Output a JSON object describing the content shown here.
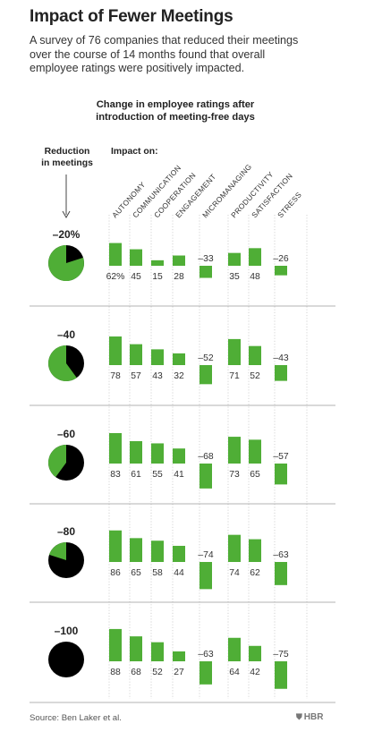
{
  "header": {
    "title": "Impact of Fewer Meetings",
    "subtitle_lines": [
      "A survey of 76 companies that reduced their meetings",
      "over the course of 14 months found that overall",
      "employee ratings were positively impacted."
    ]
  },
  "chart_data": {
    "type": "bar",
    "title_lines": [
      "Change in employee ratings after",
      "introduction of meeting-free days"
    ],
    "row_header_lines": [
      "Reduction",
      "in meetings"
    ],
    "arrow_icon": "down-arrow-icon",
    "categories_header": "Impact on:",
    "categories": [
      "AUTONOMY",
      "COMMUNICATION",
      "COOPERATION",
      "ENGAGEMENT",
      "MICROMANAGING",
      "PRODUCTIVITY",
      "SATISFACTION",
      "STRESS"
    ],
    "colors": {
      "positive": "#4fae36",
      "negative": "#4fae36",
      "pie_fill": "#4fae36",
      "pie_base": "#000000",
      "divider": "#9a9a9a"
    },
    "rows": [
      {
        "reduction_label": "–20%",
        "reduction_pct": 20,
        "values": [
          62,
          45,
          15,
          28,
          -33,
          35,
          48,
          -26
        ],
        "value_labels": [
          "62%",
          "45",
          "15",
          "28",
          "–33",
          "35",
          "48",
          "–26"
        ]
      },
      {
        "reduction_label": "–40",
        "reduction_pct": 40,
        "values": [
          78,
          57,
          43,
          32,
          -52,
          71,
          52,
          -43
        ],
        "value_labels": [
          "78",
          "57",
          "43",
          "32",
          "–52",
          "71",
          "52",
          "–43"
        ]
      },
      {
        "reduction_label": "–60",
        "reduction_pct": 60,
        "values": [
          83,
          61,
          55,
          41,
          -68,
          73,
          65,
          -57
        ],
        "value_labels": [
          "83",
          "61",
          "55",
          "41",
          "–68",
          "73",
          "65",
          "–57"
        ]
      },
      {
        "reduction_label": "–80",
        "reduction_pct": 80,
        "values": [
          86,
          65,
          58,
          44,
          -74,
          74,
          62,
          -63
        ],
        "value_labels": [
          "86",
          "65",
          "58",
          "44",
          "–74",
          "74",
          "62",
          "–63"
        ]
      },
      {
        "reduction_label": "–100",
        "reduction_pct": 100,
        "values": [
          88,
          68,
          52,
          27,
          -63,
          64,
          42,
          -75
        ],
        "value_labels": [
          "88",
          "68",
          "52",
          "27",
          "–63",
          "64",
          "42",
          "–75"
        ]
      }
    ]
  },
  "footer": {
    "source": "Source: Ben Laker et al.",
    "brand": "HBR",
    "brand_icon": "shield-icon"
  }
}
